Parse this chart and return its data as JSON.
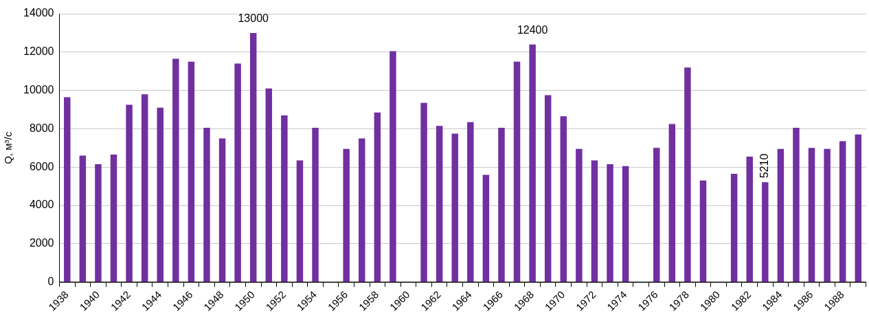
{
  "chart_data": {
    "type": "bar",
    "ylabel": "Q, м³/с",
    "categories": [
      "1938",
      null,
      "1940",
      null,
      "1942",
      null,
      "1944",
      null,
      "1946",
      null,
      "1948",
      null,
      "1950",
      null,
      "1952",
      null,
      "1954",
      null,
      "1956",
      null,
      "1958",
      null,
      "1960",
      null,
      "1962",
      null,
      "1964",
      null,
      "1966",
      null,
      "1968",
      null,
      "1970",
      null,
      "1972",
      null,
      "1974",
      null,
      "1976",
      null,
      "1978",
      null,
      "1980",
      null,
      "1982",
      null,
      "1984",
      null,
      "1986",
      null,
      "1988",
      null
    ],
    "values": [
      9650,
      6600,
      6150,
      6650,
      9250,
      9800,
      9100,
      11650,
      11500,
      8050,
      7500,
      11400,
      13000,
      10100,
      8700,
      6350,
      8050,
      null,
      6950,
      7500,
      8850,
      12050,
      null,
      9350,
      8150,
      7750,
      8350,
      5600,
      8050,
      11500,
      12400,
      9750,
      8650,
      6950,
      6350,
      6150,
      6050,
      null,
      7000,
      8250,
      11200,
      5300,
      null,
      5650,
      6550,
      5210,
      6950,
      8050,
      7000,
      6950,
      7350,
      7700
    ],
    "value_labels": [
      null,
      null,
      null,
      null,
      null,
      null,
      null,
      null,
      null,
      null,
      null,
      null,
      "13000",
      null,
      null,
      null,
      null,
      null,
      null,
      null,
      null,
      null,
      null,
      null,
      null,
      null,
      null,
      null,
      null,
      null,
      "12400",
      null,
      null,
      null,
      null,
      null,
      null,
      null,
      null,
      null,
      null,
      null,
      null,
      null,
      null,
      "5210",
      null,
      null,
      null,
      null,
      null,
      null
    ],
    "color": "#7030a0",
    "ylim": [
      0,
      14000
    ],
    "yticks": [
      0,
      2000,
      4000,
      6000,
      8000,
      10000,
      12000,
      14000
    ],
    "grid": "y",
    "legend": false
  }
}
